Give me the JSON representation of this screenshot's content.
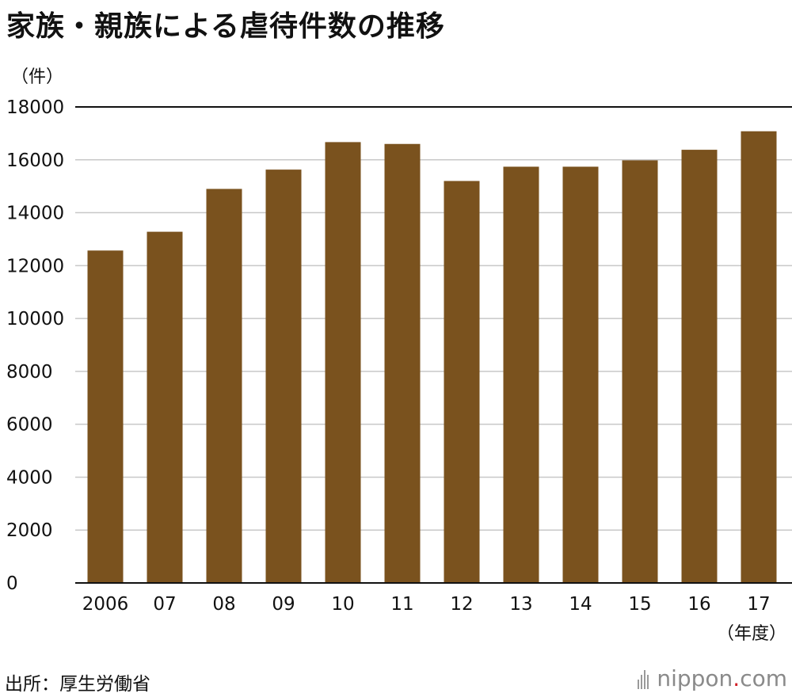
{
  "title": "家族・親族による虐待件数の推移",
  "source": "出所：厚生労働省",
  "logo": {
    "name": "nippon",
    "dot": ".",
    "suffix": "com"
  },
  "colors": {
    "bar": "#7a521e",
    "grid": "#c8c8c8",
    "axis": "#111111"
  },
  "chart_data": {
    "type": "bar",
    "title": "家族・親族による虐待件数の推移",
    "ylabel": "（件）",
    "xlabel": "（年度）",
    "ylim": [
      0,
      18000
    ],
    "yticks": [
      0,
      2000,
      4000,
      6000,
      8000,
      10000,
      12000,
      14000,
      16000,
      18000
    ],
    "grid": true,
    "categories": [
      "2006",
      "07",
      "08",
      "09",
      "10",
      "11",
      "12",
      "13",
      "14",
      "15",
      "16",
      "17"
    ],
    "values": [
      12570,
      13280,
      14900,
      15630,
      16670,
      16600,
      15200,
      15740,
      15740,
      15980,
      16380,
      17080
    ]
  }
}
